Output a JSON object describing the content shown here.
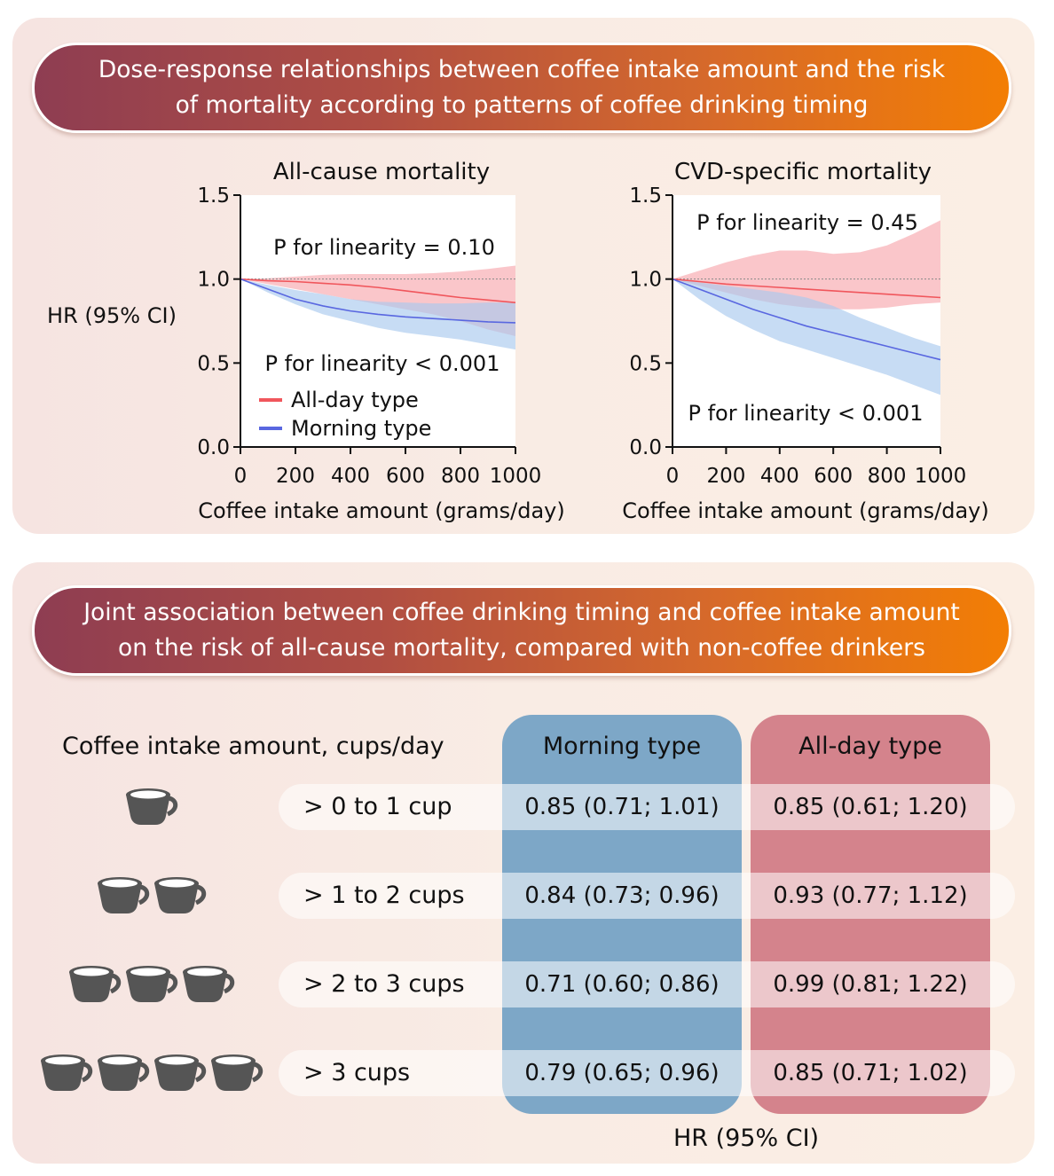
{
  "top_banner": {
    "line1": "Dose-response relationships between coffee intake amount and the risk",
    "line2": "of mortality according to patterns of coffee drinking timing"
  },
  "bottom_banner": {
    "line1": "Joint association between coffee drinking timing and coffee intake amount",
    "line2": "on the risk of all-cause mortality, compared with non-coffee drinkers"
  },
  "colors": {
    "allday": "#f0565c",
    "allday_band": "#f8a8ae",
    "morning": "#5967e0",
    "morning_band": "#a9c9ee"
  },
  "chart_data": [
    {
      "type": "line",
      "title": "All-cause mortality",
      "xlabel": "Coffee intake amount (grams/day)",
      "ylabel": "HR (95% CI)",
      "xlim": [
        0,
        1000
      ],
      "ylim": [
        0,
        1.5
      ],
      "xticks": [
        0,
        200,
        400,
        600,
        800,
        1000
      ],
      "yticks": [
        "0.0",
        "0.5",
        "1.0",
        "1.5"
      ],
      "xtick_labels": [
        "0",
        "200",
        "400",
        "600",
        "800",
        "1000"
      ],
      "reference_line": 1.0,
      "legend": [
        "All-day type",
        "Morning type"
      ],
      "annotations": {
        "allday_p": "P for linearity = 0.10",
        "morning_p": "P for linearity < 0.001"
      },
      "series": [
        {
          "name": "All-day type",
          "x": [
            0,
            100,
            200,
            300,
            400,
            500,
            600,
            700,
            800,
            900,
            1000
          ],
          "y": [
            1.0,
            0.99,
            0.985,
            0.975,
            0.965,
            0.95,
            0.93,
            0.91,
            0.89,
            0.875,
            0.86
          ],
          "lower": [
            1.0,
            0.97,
            0.94,
            0.91,
            0.88,
            0.85,
            0.82,
            0.79,
            0.75,
            0.7,
            0.66
          ],
          "upper": [
            1.0,
            1.005,
            1.015,
            1.025,
            1.03,
            1.03,
            1.03,
            1.035,
            1.045,
            1.06,
            1.08
          ]
        },
        {
          "name": "Morning type",
          "x": [
            0,
            100,
            200,
            300,
            400,
            500,
            600,
            700,
            800,
            900,
            1000
          ],
          "y": [
            1.0,
            0.94,
            0.88,
            0.84,
            0.81,
            0.79,
            0.775,
            0.765,
            0.755,
            0.745,
            0.74
          ],
          "lower": [
            1.0,
            0.92,
            0.85,
            0.79,
            0.75,
            0.71,
            0.68,
            0.66,
            0.64,
            0.61,
            0.58
          ],
          "upper": [
            1.0,
            0.965,
            0.935,
            0.91,
            0.88,
            0.865,
            0.86,
            0.855,
            0.855,
            0.86,
            0.86
          ]
        }
      ]
    },
    {
      "type": "line",
      "title": "CVD-specific mortality",
      "xlabel": "Coffee intake amount (grams/day)",
      "ylabel": "",
      "xlim": [
        0,
        1000
      ],
      "ylim": [
        0,
        1.5
      ],
      "xticks": [
        0,
        200,
        400,
        600,
        800,
        1000
      ],
      "yticks": [
        "0.0",
        "0.5",
        "1.0",
        "1.5"
      ],
      "xtick_labels": [
        "0",
        "200",
        "400",
        "600",
        "800",
        "1000"
      ],
      "reference_line": 1.0,
      "annotations": {
        "allday_p": "P for linearity = 0.45",
        "morning_p": "P for linearity < 0.001"
      },
      "series": [
        {
          "name": "All-day type",
          "x": [
            0,
            100,
            200,
            300,
            400,
            500,
            600,
            700,
            800,
            900,
            1000
          ],
          "y": [
            1.0,
            0.985,
            0.97,
            0.96,
            0.95,
            0.94,
            0.93,
            0.92,
            0.91,
            0.9,
            0.89
          ],
          "lower": [
            1.0,
            0.96,
            0.92,
            0.88,
            0.85,
            0.83,
            0.82,
            0.82,
            0.83,
            0.85,
            0.86
          ],
          "upper": [
            1.0,
            1.05,
            1.1,
            1.14,
            1.17,
            1.17,
            1.15,
            1.16,
            1.2,
            1.27,
            1.35
          ]
        },
        {
          "name": "Morning type",
          "x": [
            0,
            100,
            200,
            300,
            400,
            500,
            600,
            700,
            800,
            900,
            1000
          ],
          "y": [
            1.0,
            0.94,
            0.88,
            0.82,
            0.77,
            0.72,
            0.68,
            0.64,
            0.6,
            0.56,
            0.52
          ],
          "lower": [
            1.0,
            0.88,
            0.78,
            0.7,
            0.63,
            0.58,
            0.53,
            0.48,
            0.43,
            0.37,
            0.31
          ],
          "upper": [
            1.0,
            0.98,
            0.96,
            0.94,
            0.92,
            0.89,
            0.84,
            0.77,
            0.71,
            0.65,
            0.6
          ]
        }
      ]
    },
    {
      "type": "table",
      "title": "Coffee intake amount, cups/day",
      "columns": [
        "Morning type",
        "All-day type"
      ],
      "footer": "HR (95% CI)",
      "rows": [
        {
          "label": "> 0 to 1 cup",
          "cups": 1,
          "morning": "0.85 (0.71; 1.01)",
          "allday": "0.85 (0.61; 1.20)"
        },
        {
          "label": "> 1 to 2 cups",
          "cups": 2,
          "morning": "0.84 (0.73; 0.96)",
          "allday": "0.93 (0.77; 1.12)"
        },
        {
          "label": "> 2 to 3 cups",
          "cups": 3,
          "morning": "0.71 (0.60; 0.86)",
          "allday": "0.99 (0.81; 1.22)"
        },
        {
          "label": "> 3 cups",
          "cups": 4,
          "morning": "0.79 (0.65; 0.96)",
          "allday": "0.85 (0.71; 1.02)"
        }
      ]
    }
  ]
}
